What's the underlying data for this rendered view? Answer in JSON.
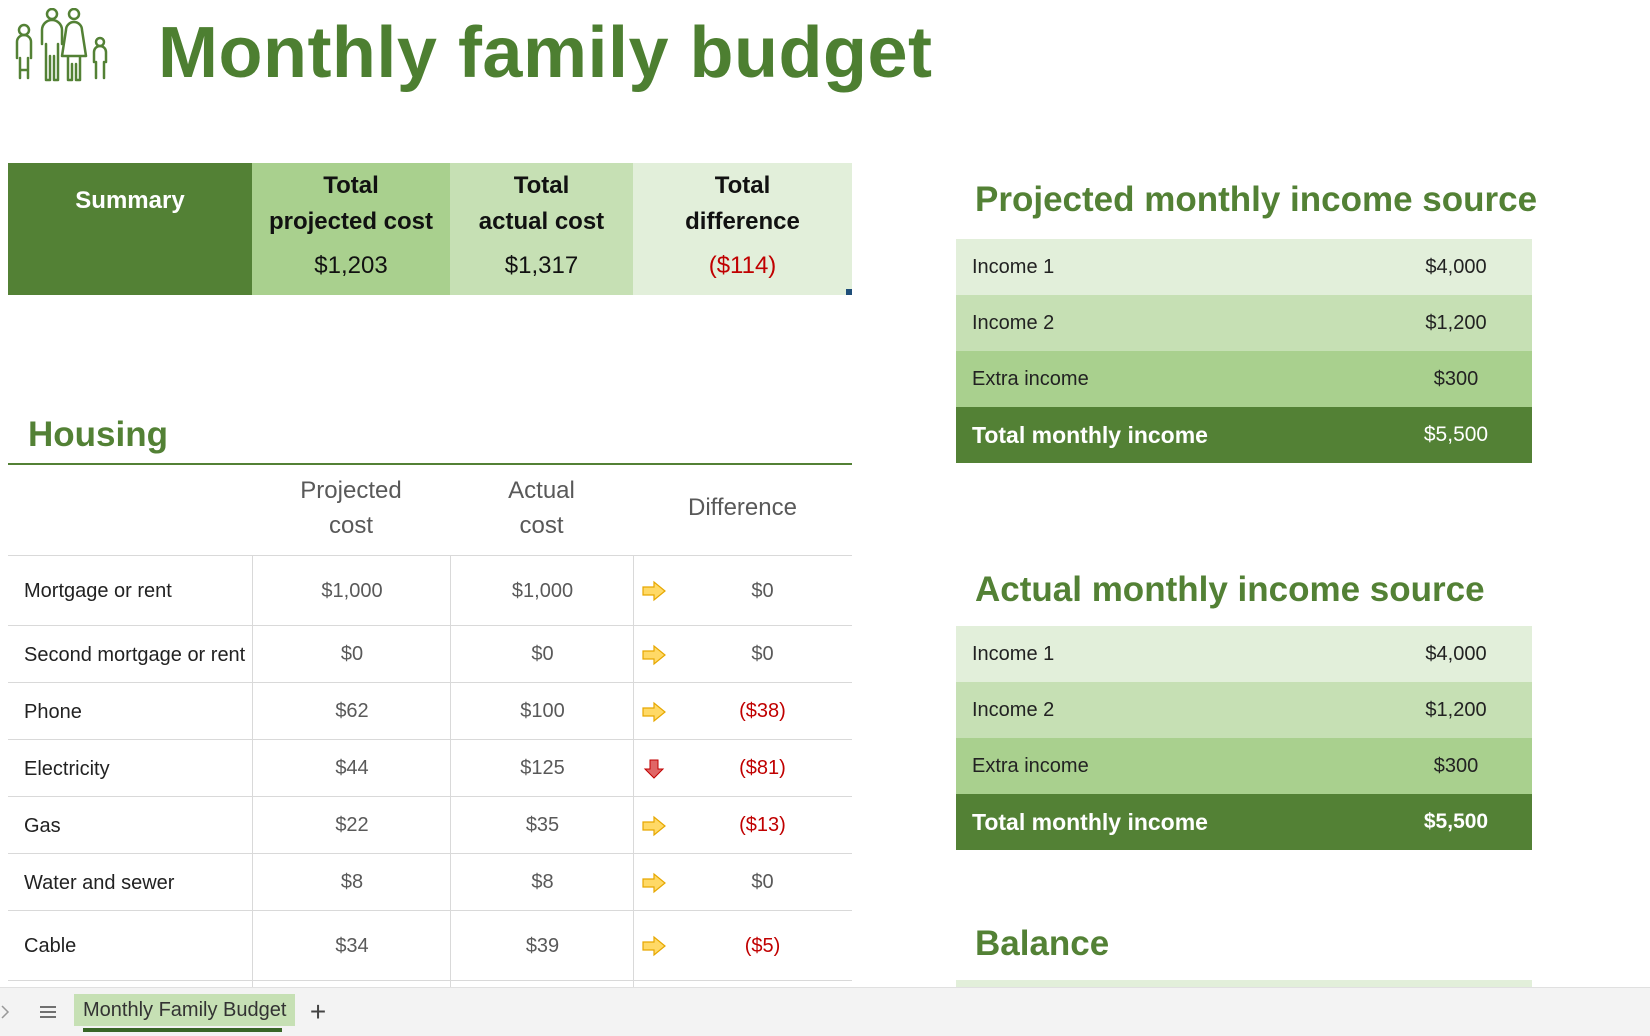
{
  "page": {
    "title": "Monthly family budget",
    "icon": "family-icon",
    "accent_color": "#538135",
    "negative_color": "#c00000"
  },
  "summary": {
    "label": "Summary",
    "projected_header": [
      "Total",
      "projected cost"
    ],
    "actual_header": [
      "Total",
      "actual cost"
    ],
    "difference_header": [
      "Total",
      "difference"
    ],
    "projected_value": "$1,203",
    "actual_value": "$1,317",
    "difference_value": "($114)"
  },
  "housing": {
    "title": "Housing",
    "columns": {
      "projected": [
        "Projected",
        "cost"
      ],
      "actual": [
        "Actual",
        "cost"
      ],
      "difference": "Difference"
    },
    "rows": [
      {
        "name": "Mortgage or rent",
        "projected": "$1,000",
        "actual": "$1,000",
        "indicator": "arrow-right-icon",
        "difference": "$0",
        "negative": false
      },
      {
        "name": "Second mortgage or rent",
        "projected": "$0",
        "actual": "$0",
        "indicator": "arrow-right-icon",
        "difference": "$0",
        "negative": false
      },
      {
        "name": "Phone",
        "projected": "$62",
        "actual": "$100",
        "indicator": "arrow-right-icon",
        "difference": "($38)",
        "negative": true
      },
      {
        "name": "Electricity",
        "projected": "$44",
        "actual": "$125",
        "indicator": "arrow-down-icon",
        "difference": "($81)",
        "negative": true
      },
      {
        "name": "Gas",
        "projected": "$22",
        "actual": "$35",
        "indicator": "arrow-right-icon",
        "difference": "($13)",
        "negative": true
      },
      {
        "name": "Water and sewer",
        "projected": "$8",
        "actual": "$8",
        "indicator": "arrow-right-icon",
        "difference": "$0",
        "negative": false
      },
      {
        "name": "Cable",
        "projected": "$34",
        "actual": "$39",
        "indicator": "arrow-right-icon",
        "difference": "($5)",
        "negative": true
      }
    ]
  },
  "projected_income": {
    "title": "Projected monthly income source",
    "rows": [
      {
        "label": "Income 1",
        "value": "$4,000"
      },
      {
        "label": "Income 2",
        "value": "$1,200"
      },
      {
        "label": "Extra income",
        "value": "$300"
      }
    ],
    "total_label": "Total monthly income",
    "total_value": "$5,500"
  },
  "actual_income": {
    "title": "Actual monthly income source",
    "rows": [
      {
        "label": "Income 1",
        "value": "$4,000"
      },
      {
        "label": "Income 2",
        "value": "$1,200"
      },
      {
        "label": "Extra income",
        "value": "$300"
      }
    ],
    "total_label": "Total monthly income",
    "total_value": "$5,500"
  },
  "balance": {
    "title": "Balance"
  },
  "sheet_bar": {
    "sheet_tab": "Monthly Family Budget",
    "add_label": "+",
    "menu_icon": "hamburger-icon",
    "prev_icon": "chevron-right-icon"
  }
}
